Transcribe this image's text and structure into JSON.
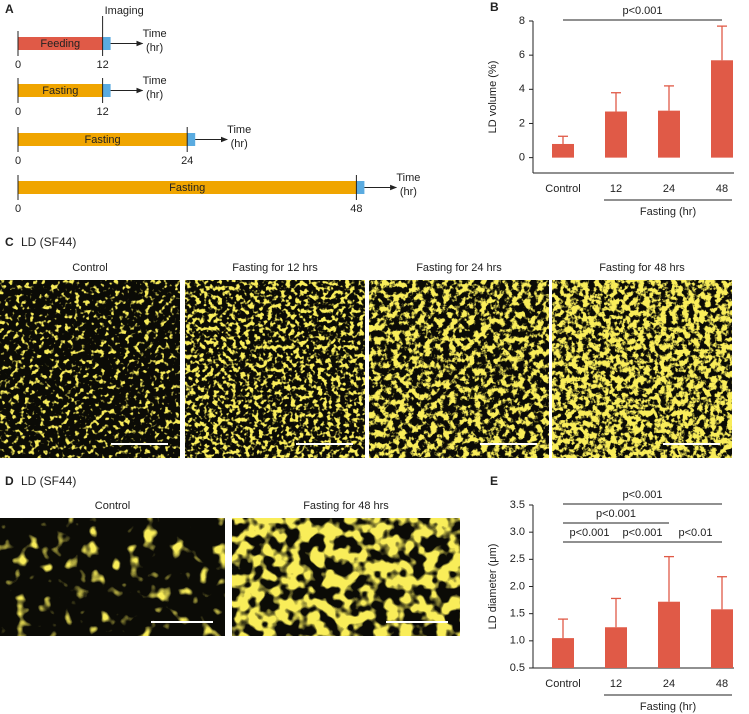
{
  "panel_a": {
    "label": "A",
    "imaging_label": "Imaging",
    "time_label": "Time",
    "unit_label": "(hr)",
    "timelines": [
      {
        "phase": "Feeding",
        "start": 0,
        "end": 12,
        "color": "#e05a47"
      },
      {
        "phase": "Fasting",
        "start": 0,
        "end": 12,
        "color": "#f0a500"
      },
      {
        "phase": "Fasting",
        "start": 0,
        "end": 24,
        "color": "#f0a500"
      },
      {
        "phase": "Fasting",
        "start": 0,
        "end": 48,
        "color": "#f0a500"
      }
    ],
    "imaging_color": "#5aabe0"
  },
  "chart_data": [
    {
      "type": "bar",
      "panel": "B",
      "ylabel": "LD volume (%)",
      "categories": [
        "Control",
        "12",
        "24",
        "48"
      ],
      "values": [
        0.8,
        2.7,
        2.75,
        5.7
      ],
      "errors": [
        0.45,
        1.1,
        1.45,
        2.0
      ],
      "color": "#e05a47",
      "ylim": [
        -0.9,
        8
      ],
      "yticks": [
        0,
        2,
        4,
        6,
        8
      ],
      "group_label": "Fasting (hr)",
      "annotations": [
        {
          "label": "p<0.001",
          "from": "Control",
          "to": "48"
        }
      ]
    },
    {
      "type": "bar",
      "panel": "E",
      "ylabel": "LD diameter (μm)",
      "categories": [
        "Control",
        "12",
        "24",
        "48"
      ],
      "values": [
        1.05,
        1.25,
        1.72,
        1.58
      ],
      "errors": [
        0.35,
        0.53,
        0.83,
        0.6
      ],
      "color": "#e05a47",
      "ylim": [
        0.5,
        3.5
      ],
      "yticks": [
        0.5,
        {
          "value": 1,
          "label": "1.0"
        },
        1.5,
        {
          "value": 2,
          "label": "2.0"
        },
        2.5,
        {
          "value": 3,
          "label": "3.0"
        },
        3.5
      ],
      "group_label": "Fasting (hr)",
      "annotations": [
        {
          "label": "p<0.001",
          "from": "Control",
          "to": "48"
        },
        {
          "label": "p<0.001",
          "from": "Control",
          "to": "24"
        },
        {
          "label": "p<0.001",
          "from": "Control",
          "to": "12"
        },
        {
          "label": "p<0.001",
          "from": "12",
          "to": "24"
        },
        {
          "label": "p<0.01",
          "from": "24",
          "to": "48"
        }
      ]
    }
  ],
  "panel_c": {
    "label": "C",
    "title": "LD (SF44)",
    "images": [
      "Control",
      "Fasting for 12 hrs",
      "Fasting for 24 hrs",
      "Fasting for 48 hrs"
    ]
  },
  "panel_d": {
    "label": "D",
    "title": "LD (SF44)",
    "images": [
      "Control",
      "Fasting for 48 hrs"
    ]
  }
}
